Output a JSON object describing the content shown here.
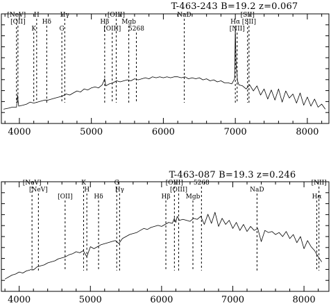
{
  "chart_data": [
    {
      "type": "line",
      "title": "T-463-243 B=19.2 z=0.067",
      "xlim": [
        3750,
        8300
      ],
      "xticks": [
        4000,
        5000,
        6000,
        7000,
        8000
      ],
      "ylim": [
        0,
        1
      ],
      "grid": false,
      "markers": [
        {
          "label": "[NeV]",
          "x": 3960
        },
        {
          "label": "[OII]",
          "x": 3980
        },
        {
          "label": "K",
          "x": 4200
        },
        {
          "label": "H",
          "x": 4240
        },
        {
          "label": "Hδ",
          "x": 4380
        },
        {
          "label": "G",
          "x": 4590
        },
        {
          "label": "Hγ",
          "x": 4630
        },
        {
          "label": "Hβ",
          "x": 5185
        },
        {
          "label": "[OIII]",
          "x": 5290
        },
        {
          "label": "[OIII]",
          "x": 5345
        },
        {
          "label": "Mgb",
          "x": 5520
        },
        {
          "label": "5268",
          "x": 5625
        },
        {
          "label": "NaD",
          "x": 6290
        },
        {
          "label": "Hα",
          "x": 7000
        },
        {
          "label": "[NII]",
          "x": 7025
        },
        {
          "label": "[SII]",
          "x": 7170
        },
        {
          "label": "[SII]",
          "x": 7190
        }
      ],
      "series": [
        {
          "x": [
            3780,
            3850,
            3900,
            3960,
            3975,
            3990,
            4050,
            4100,
            4150,
            4200,
            4250,
            4300,
            4350,
            4400,
            4450,
            4500,
            4550,
            4600,
            4650,
            4700,
            4750,
            4800,
            4850,
            4900,
            4950,
            5000,
            5050,
            5100,
            5150,
            5185,
            5200,
            5250,
            5300,
            5350,
            5400,
            5450,
            5500,
            5550,
            5600,
            5650,
            5700,
            5750,
            5800,
            5850,
            5900,
            5950,
            6000,
            6050,
            6100,
            6150,
            6200,
            6250,
            6300,
            6350,
            6400,
            6450,
            6500,
            6550,
            6600,
            6650,
            6700,
            6750,
            6800,
            6850,
            6900,
            6950,
            6990,
            7000,
            7010,
            7030,
            7050,
            7100,
            7150,
            7200,
            7250,
            7300,
            7350,
            7400,
            7450,
            7500,
            7550,
            7600,
            7650,
            7700,
            7750,
            7800,
            7850,
            7900,
            7950,
            8000,
            8050,
            8100,
            8150,
            8200,
            8250
          ],
          "y": [
            0.1,
            0.11,
            0.12,
            0.12,
            0.24,
            0.13,
            0.14,
            0.15,
            0.17,
            0.16,
            0.17,
            0.18,
            0.19,
            0.19,
            0.2,
            0.21,
            0.22,
            0.23,
            0.25,
            0.24,
            0.26,
            0.28,
            0.27,
            0.3,
            0.29,
            0.31,
            0.32,
            0.31,
            0.34,
            0.4,
            0.33,
            0.35,
            0.36,
            0.38,
            0.37,
            0.38,
            0.39,
            0.38,
            0.4,
            0.39,
            0.4,
            0.41,
            0.4,
            0.42,
            0.41,
            0.42,
            0.41,
            0.42,
            0.41,
            0.42,
            0.42,
            0.41,
            0.42,
            0.4,
            0.41,
            0.4,
            0.41,
            0.39,
            0.4,
            0.38,
            0.39,
            0.37,
            0.38,
            0.36,
            0.36,
            0.35,
            0.4,
            0.9,
            0.55,
            0.38,
            0.34,
            0.33,
            0.3,
            0.34,
            0.28,
            0.33,
            0.24,
            0.3,
            0.2,
            0.29,
            0.19,
            0.3,
            0.17,
            0.28,
            0.21,
            0.25,
            0.16,
            0.26,
            0.14,
            0.22,
            0.13,
            0.2,
            0.12,
            0.15,
            0.1
          ]
        }
      ]
    },
    {
      "type": "line",
      "title": "T-463-087 B=19.3 z=0.246",
      "xlim": [
        3750,
        8350
      ],
      "xticks": [
        4000,
        5000,
        6000,
        7000,
        8000
      ],
      "ylim": [
        0,
        1
      ],
      "grid": false,
      "markers": [
        {
          "label": "[NeV]",
          "x": 4180
        },
        {
          "label": "[NeV]",
          "x": 4270
        },
        {
          "label": "[OII]",
          "x": 4645
        },
        {
          "label": "K",
          "x": 4905
        },
        {
          "label": "H",
          "x": 4950
        },
        {
          "label": "Hδ",
          "x": 5115
        },
        {
          "label": "G",
          "x": 5370
        },
        {
          "label": "Hγ",
          "x": 5410
        },
        {
          "label": "Hβ",
          "x": 6060
        },
        {
          "label": "[OIII]",
          "x": 6180
        },
        {
          "label": "[OIII]",
          "x": 6240
        },
        {
          "label": "Mgb",
          "x": 6440
        },
        {
          "label": "5268",
          "x": 6560
        },
        {
          "label": "NaD",
          "x": 7340
        },
        {
          "label": "Hα",
          "x": 8180
        },
        {
          "label": "[NII]",
          "x": 8210
        }
      ],
      "series": [
        {
          "x": [
            3800,
            3850,
            3900,
            3950,
            4000,
            4050,
            4100,
            4150,
            4180,
            4200,
            4250,
            4300,
            4350,
            4400,
            4450,
            4500,
            4550,
            4600,
            4650,
            4700,
            4750,
            4800,
            4850,
            4900,
            4950,
            5000,
            5050,
            5100,
            5150,
            5200,
            5250,
            5300,
            5350,
            5400,
            5450,
            5500,
            5550,
            5600,
            5650,
            5700,
            5750,
            5800,
            5850,
            5900,
            5950,
            6000,
            6050,
            6100,
            6150,
            6180,
            6200,
            6220,
            6250,
            6300,
            6350,
            6400,
            6450,
            6500,
            6550,
            6600,
            6650,
            6700,
            6750,
            6800,
            6850,
            6900,
            6950,
            7000,
            7050,
            7100,
            7150,
            7200,
            7250,
            7300,
            7350,
            7400,
            7450,
            7500,
            7550,
            7600,
            7650,
            7700,
            7750,
            7800,
            7850,
            7900,
            7950,
            8000,
            8050,
            8100,
            8150,
            8200,
            8250
          ],
          "y": [
            0.08,
            0.1,
            0.12,
            0.13,
            0.15,
            0.14,
            0.16,
            0.17,
            0.18,
            0.17,
            0.2,
            0.21,
            0.22,
            0.24,
            0.25,
            0.26,
            0.28,
            0.29,
            0.3,
            0.32,
            0.33,
            0.35,
            0.34,
            0.36,
            0.3,
            0.4,
            0.38,
            0.4,
            0.42,
            0.43,
            0.44,
            0.45,
            0.46,
            0.43,
            0.48,
            0.5,
            0.52,
            0.53,
            0.54,
            0.56,
            0.58,
            0.57,
            0.59,
            0.6,
            0.61,
            0.6,
            0.62,
            0.64,
            0.63,
            0.68,
            0.64,
            0.7,
            0.66,
            0.67,
            0.66,
            0.65,
            0.68,
            0.67,
            0.7,
            0.62,
            0.72,
            0.63,
            0.74,
            0.6,
            0.68,
            0.62,
            0.66,
            0.58,
            0.64,
            0.56,
            0.62,
            0.55,
            0.6,
            0.56,
            0.58,
            0.45,
            0.56,
            0.54,
            0.55,
            0.52,
            0.54,
            0.5,
            0.55,
            0.48,
            0.52,
            0.44,
            0.5,
            0.38,
            0.46,
            0.4,
            0.36,
            0.3,
            0.25
          ]
        }
      ]
    }
  ]
}
